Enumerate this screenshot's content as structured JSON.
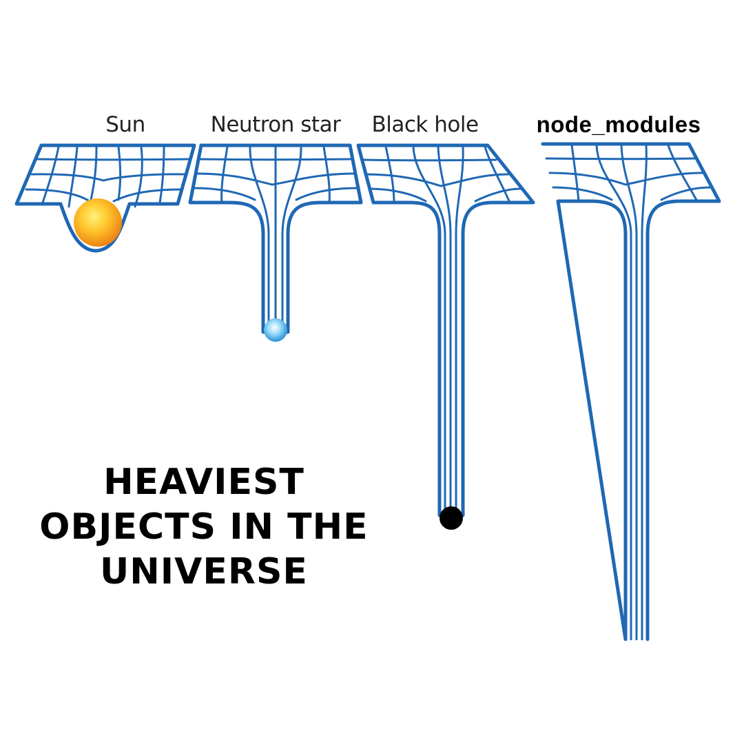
{
  "labels": {
    "sun": "Sun",
    "neutron_star": "Neutron star",
    "black_hole": "Black hole",
    "node_modules": "node_modules"
  },
  "headline": {
    "line1": "HEAVIEST",
    "line2": "OBJECTS IN THE",
    "line3": "UNIVERSE"
  },
  "colors": {
    "grid_blue": "#1f68b4",
    "sun_core": "#ffd23c",
    "sun_edge": "#f08a16",
    "neutron_core": "#e8f8ff",
    "neutron_edge": "#2ea0e6",
    "black_hole": "#000000"
  }
}
